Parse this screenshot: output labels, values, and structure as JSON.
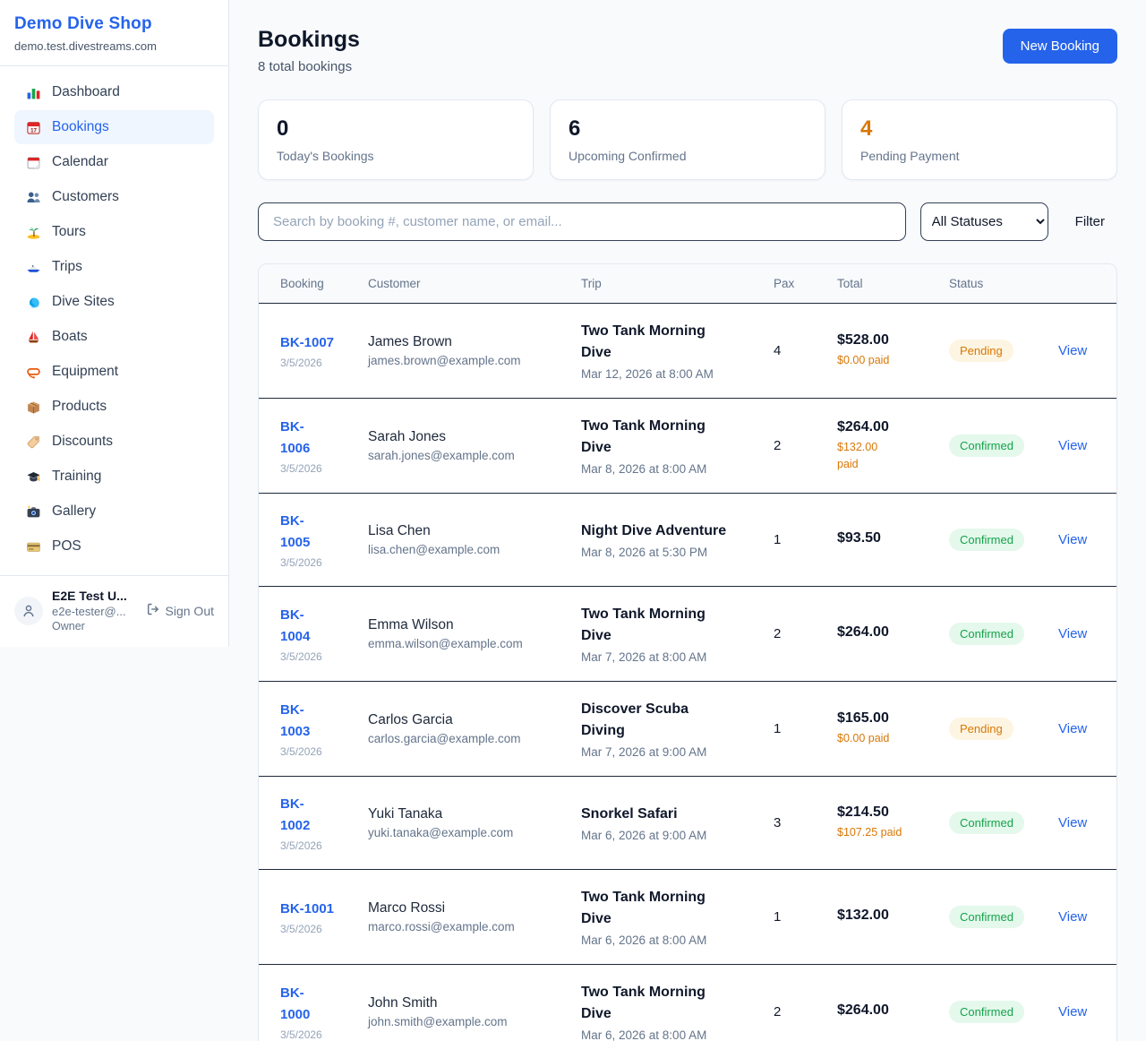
{
  "colors": {
    "accent_blue": "#2563eb",
    "accent_orange": "#d97706",
    "confirmed_green": "#16a34a",
    "pending_badge_bg": "#fdf5e1",
    "confirmed_badge_bg": "#e4f8ec",
    "page_bg": "#f8fafc"
  },
  "sidebar": {
    "brand": {
      "title": "Demo Dive Shop",
      "domain": "demo.test.divestreams.com"
    },
    "items": [
      {
        "key": "dashboard",
        "label": "Dashboard",
        "icon_name": "bar-chart-icon",
        "active": false
      },
      {
        "key": "bookings",
        "label": "Bookings",
        "icon_name": "calendar-icon",
        "active": true
      },
      {
        "key": "calendar",
        "label": "Calendar",
        "icon_name": "tear-off-calendar-icon",
        "active": false
      },
      {
        "key": "customers",
        "label": "Customers",
        "icon_name": "people-icon",
        "active": false
      },
      {
        "key": "tours",
        "label": "Tours",
        "icon_name": "island-icon",
        "active": false
      },
      {
        "key": "trips",
        "label": "Trips",
        "icon_name": "speedboat-icon",
        "active": false
      },
      {
        "key": "dive-sites",
        "label": "Dive Sites",
        "icon_name": "wave-icon",
        "active": false
      },
      {
        "key": "boats",
        "label": "Boats",
        "icon_name": "sailboat-icon",
        "active": false
      },
      {
        "key": "equipment",
        "label": "Equipment",
        "icon_name": "dive-mask-icon",
        "active": false
      },
      {
        "key": "products",
        "label": "Products",
        "icon_name": "package-icon",
        "active": false
      },
      {
        "key": "discounts",
        "label": "Discounts",
        "icon_name": "tag-icon",
        "active": false
      },
      {
        "key": "training",
        "label": "Training",
        "icon_name": "graduation-cap-icon",
        "active": false
      },
      {
        "key": "gallery",
        "label": "Gallery",
        "icon_name": "camera-icon",
        "active": false
      },
      {
        "key": "pos",
        "label": "POS",
        "icon_name": "credit-card-icon",
        "active": false
      }
    ],
    "user": {
      "name": "E2E Test U...",
      "email": "e2e-tester@...",
      "role": "Owner",
      "sign_out_label": "Sign Out"
    }
  },
  "header": {
    "title": "Bookings",
    "subtitle": "8 total bookings",
    "new_booking_label": "New Booking"
  },
  "stats": [
    {
      "value": "0",
      "label": "Today's Bookings"
    },
    {
      "value": "6",
      "label": "Upcoming Confirmed"
    },
    {
      "value": "4",
      "label": "Pending Payment"
    }
  ],
  "filters": {
    "search_placeholder": "Search by booking #, customer name, or email...",
    "status_selected": "All Statuses",
    "filter_label": "Filter"
  },
  "table": {
    "columns": {
      "booking": "Booking",
      "customer": "Customer",
      "trip": "Trip",
      "pax": "Pax",
      "total": "Total",
      "status": "Status"
    },
    "rows": [
      {
        "id": "BK-1007",
        "date": "3/5/2026",
        "customer": "James Brown",
        "email": "james.brown@example.com",
        "trip": "Two Tank Morning\nDive",
        "trip_date": "Mar 12, 2026 at 8:00 AM",
        "pax": "4",
        "total": "$528.00",
        "paid": "$0.00 paid",
        "status": "Pending",
        "view_label": "View"
      },
      {
        "id": "BK-\n1006",
        "date": "3/5/2026",
        "customer": "Sarah Jones",
        "email": "sarah.jones@example.com",
        "trip": "Two Tank Morning\nDive",
        "trip_date": "Mar 8, 2026 at 8:00 AM",
        "pax": "2",
        "total": "$264.00",
        "paid": "$132.00\npaid",
        "status": "Confirmed",
        "view_label": "View"
      },
      {
        "id": "BK-\n1005",
        "date": "3/5/2026",
        "customer": "Lisa Chen",
        "email": "lisa.chen@example.com",
        "trip": "Night Dive Adventure",
        "trip_date": "Mar 8, 2026 at 5:30 PM",
        "pax": "1",
        "total": "$93.50",
        "paid": "",
        "status": "Confirmed",
        "view_label": "View"
      },
      {
        "id": "BK-\n1004",
        "date": "3/5/2026",
        "customer": "Emma Wilson",
        "email": "emma.wilson@example.com",
        "trip": "Two Tank Morning\nDive",
        "trip_date": "Mar 7, 2026 at 8:00 AM",
        "pax": "2",
        "total": "$264.00",
        "paid": "",
        "status": "Confirmed",
        "view_label": "View"
      },
      {
        "id": "BK-\n1003",
        "date": "3/5/2026",
        "customer": "Carlos Garcia",
        "email": "carlos.garcia@example.com",
        "trip": "Discover Scuba\nDiving",
        "trip_date": "Mar 7, 2026 at 9:00 AM",
        "pax": "1",
        "total": "$165.00",
        "paid": "$0.00 paid",
        "status": "Pending",
        "view_label": "View"
      },
      {
        "id": "BK-\n1002",
        "date": "3/5/2026",
        "customer": "Yuki Tanaka",
        "email": "yuki.tanaka@example.com",
        "trip": "Snorkel Safari",
        "trip_date": "Mar 6, 2026 at 9:00 AM",
        "pax": "3",
        "total": "$214.50",
        "paid": "$107.25 paid",
        "status": "Confirmed",
        "view_label": "View"
      },
      {
        "id": "BK-1001",
        "date": "3/5/2026",
        "customer": "Marco Rossi",
        "email": "marco.rossi@example.com",
        "trip": "Two Tank Morning\nDive",
        "trip_date": "Mar 6, 2026 at 8:00 AM",
        "pax": "1",
        "total": "$132.00",
        "paid": "",
        "status": "Confirmed",
        "view_label": "View"
      },
      {
        "id": "BK-\n1000",
        "date": "3/5/2026",
        "customer": "John Smith",
        "email": "john.smith@example.com",
        "trip": "Two Tank Morning\nDive",
        "trip_date": "Mar 6, 2026 at 8:00 AM",
        "pax": "2",
        "total": "$264.00",
        "paid": "",
        "status": "Confirmed",
        "view_label": "View"
      }
    ]
  }
}
